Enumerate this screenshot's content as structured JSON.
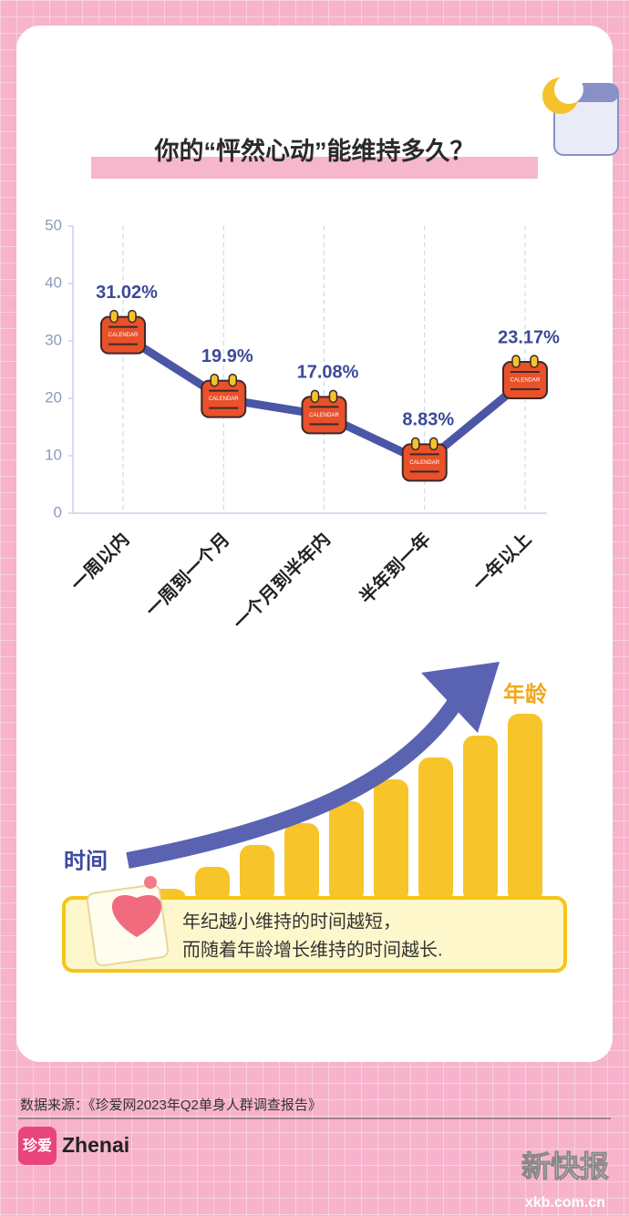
{
  "chart_data": {
    "type": "line",
    "title": "你的“怦然心动”能维持多久？",
    "categories": [
      "一周以内",
      "一周到一个月",
      "一个月到半年内",
      "半年到一年",
      "一年以上"
    ],
    "values": [
      31.02,
      19.9,
      17.08,
      8.83,
      23.17
    ],
    "value_labels": [
      "31.02%",
      "19.9%",
      "17.08%",
      "8.83%",
      "23.17%"
    ],
    "marker_text": "CALENDAR",
    "color": "#4b56a6",
    "ylim": [
      0,
      50
    ],
    "yticks": [
      0,
      10,
      20,
      30,
      40,
      50
    ],
    "grid": true
  },
  "illustration": {
    "x_label": "时间",
    "y_label": "年龄",
    "caption": [
      "年纪越小维持的时间越短，",
      "而随着年龄增长维持的时间越长."
    ]
  },
  "source": "数据来源：《珍爱网2023年Q2单身人群调查报告》",
  "brand": {
    "logo_text": "珍爱",
    "name": "Zhenai"
  },
  "watermark": {
    "name": "新快报",
    "url": "xkb.com.cn"
  }
}
